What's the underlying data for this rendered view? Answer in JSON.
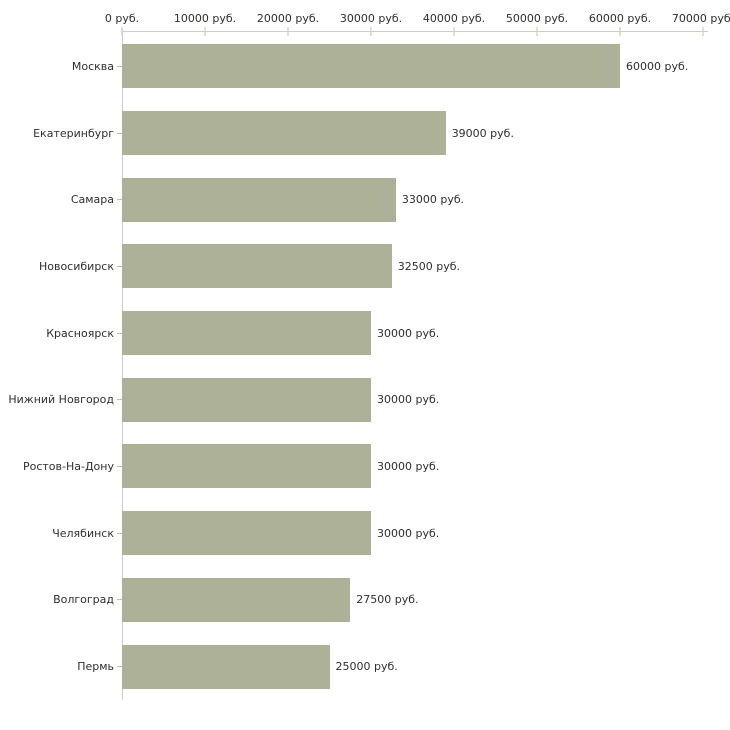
{
  "chart_data": {
    "type": "bar",
    "orientation": "horizontal",
    "title": "",
    "xlabel": "",
    "ylabel": "",
    "xlim": [
      0,
      70000
    ],
    "grid": false,
    "legend": false,
    "x_ticks": [
      0,
      10000,
      20000,
      30000,
      40000,
      50000,
      60000,
      70000
    ],
    "x_tick_labels": [
      "0 руб.",
      "10000 руб.",
      "20000 руб.",
      "30000 руб.",
      "40000 руб.",
      "50000 руб.",
      "60000 руб.",
      "70000 руб."
    ],
    "categories": [
      "Москва",
      "Екатеринбург",
      "Самара",
      "Новосибирск",
      "Красноярск",
      "Нижний Новгород",
      "Ростов-На-Дону",
      "Челябинск",
      "Волгоград",
      "Пермь"
    ],
    "values": [
      60000,
      39000,
      33000,
      32500,
      30000,
      30000,
      30000,
      30000,
      27500,
      25000
    ],
    "value_labels": [
      "60000 руб.",
      "39000 руб.",
      "33000 руб.",
      "32500 руб.",
      "30000 руб.",
      "30000 руб.",
      "30000 руб.",
      "30000 руб.",
      "27500 руб.",
      "25000 руб."
    ],
    "colors": {
      "bar": "#acb197",
      "axis_line": "#cccccc",
      "tick_mark": "#c6c19a",
      "text": "#2f2f2f"
    }
  }
}
